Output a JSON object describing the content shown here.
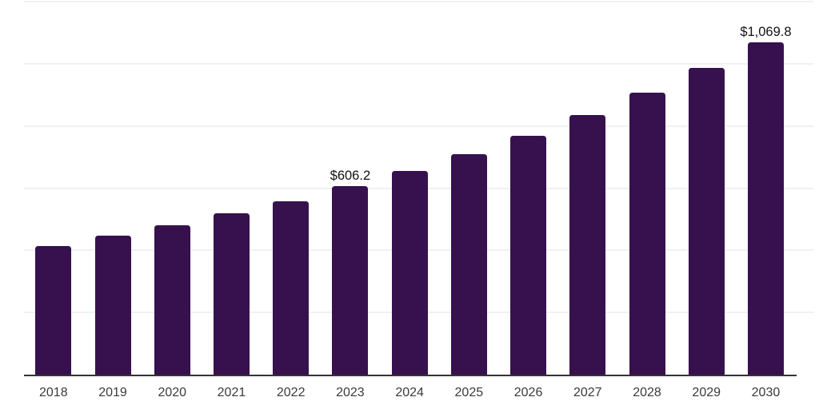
{
  "page": {
    "background": "#ffffff"
  },
  "chart_data": {
    "type": "bar",
    "title": "",
    "xlabel": "",
    "ylabel": "",
    "categories": [
      "2018",
      "2019",
      "2020",
      "2021",
      "2022",
      "2023",
      "2024",
      "2025",
      "2026",
      "2027",
      "2028",
      "2029",
      "2030"
    ],
    "values": [
      413.0,
      446.5,
      480.0,
      518.5,
      557.5,
      606.2,
      655.5,
      709.5,
      768.5,
      835.5,
      908.0,
      987.5,
      1069.8
    ],
    "data_labels": [
      "",
      "",
      "",
      "",
      "",
      "$606.2",
      "",
      "",
      "",
      "",
      "",
      "",
      "$1,069.8"
    ],
    "visible_value_labels": {
      "2023": "$606.2",
      "2030": "$1,069.8"
    },
    "currency_prefix": "$",
    "ylim": [
      0,
      1200
    ],
    "gridline_step": 200,
    "grid": true,
    "legend": false,
    "y_tick_labels_shown": false,
    "colors": {
      "bar": "#36114E",
      "axis_line": "#333333",
      "gridline": "#f1f1f1",
      "tick_label": "#3a3a3a",
      "data_label": "#111111",
      "background": "#ffffff"
    }
  }
}
